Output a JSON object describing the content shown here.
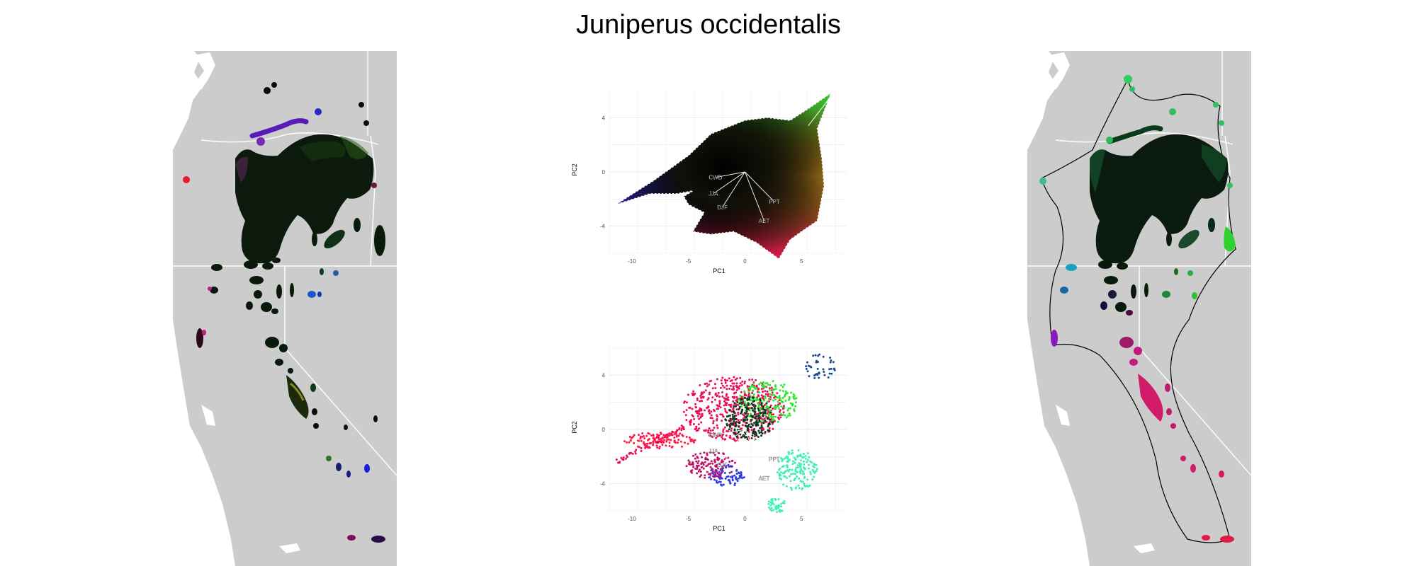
{
  "title": "Juniperus occidentalis",
  "chart_data": [
    {
      "type": "scatter",
      "panel": "pca-colored",
      "xlabel": "PC1",
      "ylabel": "PC2",
      "xticks": [
        "-10",
        "-5",
        "0",
        "5"
      ],
      "yticks": [
        "4",
        "0",
        "-4"
      ],
      "xlim": [
        -12,
        9
      ],
      "ylim": [
        -6,
        6
      ],
      "loadings": [
        {
          "label": "CWD",
          "x": -2.6,
          "y": -0.4
        },
        {
          "label": "JJA",
          "x": -2.8,
          "y": -1.6
        },
        {
          "label": "DJF",
          "x": -2.0,
          "y": -2.6
        },
        {
          "label": "PPT",
          "x": 2.6,
          "y": -2.2
        },
        {
          "label": "AET",
          "x": 1.7,
          "y": -3.6
        }
      ],
      "grid": true
    },
    {
      "type": "scatter",
      "panel": "pca-clusters",
      "xlabel": "PC1",
      "ylabel": "PC2",
      "xticks": [
        "-10",
        "-5",
        "0",
        "5"
      ],
      "yticks": [
        "4",
        "0",
        "-4"
      ],
      "xlim": [
        -12,
        9
      ],
      "ylim": [
        -6,
        6
      ],
      "loadings": [
        {
          "label": "CWD",
          "x": -2.6,
          "y": -0.4
        },
        {
          "label": "JJA",
          "x": -2.8,
          "y": -1.6
        },
        {
          "label": "DJF",
          "x": -2.0,
          "y": -2.6
        },
        {
          "label": "PPT",
          "x": 2.6,
          "y": -2.2
        },
        {
          "label": "AET",
          "x": 1.7,
          "y": -3.6
        }
      ],
      "series_colors": [
        "#e8105a",
        "#ff1a4a",
        "#30e830",
        "#40f0b0",
        "#3040e0",
        "#0a3a20",
        "#1a4a90",
        "#c0106a"
      ],
      "grid": true
    }
  ],
  "colors": {
    "land": "#cccccc",
    "water": "#ffffff",
    "grid": "#ebebeb"
  }
}
